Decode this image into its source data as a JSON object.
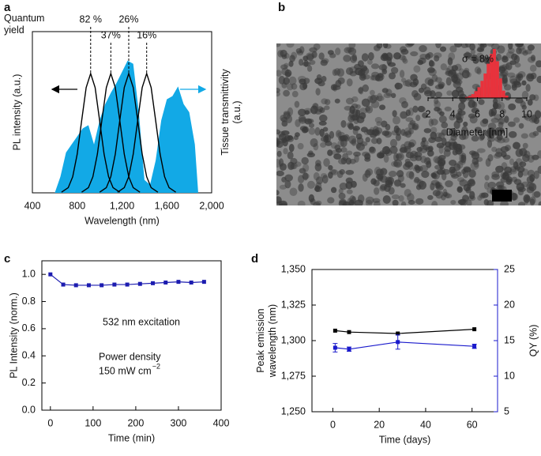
{
  "chart_data": [
    {
      "type": "line",
      "label": "a",
      "annotation": "Quantum yield",
      "xlabel": "Wavelength (nm)",
      "ylabel": "PL intensity (a.u.)",
      "y2label": "Tissue transmittivity (a.u.)",
      "xlim": [
        400,
        2000
      ],
      "xticks": [
        400,
        800,
        {
          "value": 1200,
          "label": "1,200"
        },
        {
          "value": 1600,
          "label": "1,600"
        },
        {
          "value": 2000,
          "label": "2,000"
        }
      ],
      "ylim": [
        0,
        1
      ],
      "y2lim": [
        0,
        1
      ],
      "series": [
        {
          "color": "#12a9e6",
          "fill": true,
          "axis": "y2",
          "x": [
            600,
            650,
            700,
            750,
            800,
            850,
            900,
            950,
            1000,
            1050,
            1100,
            1150,
            1200,
            1250,
            1300,
            1350,
            1400,
            1450,
            1500,
            1550,
            1600,
            1650,
            1700,
            1750,
            1800,
            1850,
            1880
          ],
          "values": [
            0,
            0.1,
            0.25,
            0.3,
            0.35,
            0.4,
            0.42,
            0.3,
            0.45,
            0.55,
            0.62,
            0.68,
            0.75,
            0.82,
            0.8,
            0.5,
            0.08,
            0.05,
            0.2,
            0.45,
            0.58,
            0.6,
            0.66,
            0.55,
            0.5,
            0.3,
            0
          ]
        },
        {
          "name": "82 %",
          "color": "#000000",
          "x": [
            660,
            720,
            760,
            800,
            840,
            880,
            920,
            960,
            1000,
            1040,
            1080,
            1120,
            1180
          ],
          "values": [
            0.004,
            0.032,
            0.1,
            0.24,
            0.449,
            0.653,
            0.74,
            0.653,
            0.449,
            0.24,
            0.1,
            0.032,
            0.004
          ]
        },
        {
          "name": "37%",
          "color": "#000000",
          "x": [
            840,
            900,
            940,
            980,
            1020,
            1060,
            1100,
            1140,
            1180,
            1220,
            1260,
            1300,
            1360
          ],
          "values": [
            0.004,
            0.032,
            0.1,
            0.24,
            0.449,
            0.653,
            0.74,
            0.653,
            0.449,
            0.24,
            0.1,
            0.032,
            0.004
          ]
        },
        {
          "name": "26%",
          "color": "#000000",
          "x": [
            1000,
            1060,
            1100,
            1140,
            1180,
            1220,
            1260,
            1300,
            1340,
            1380,
            1420,
            1460,
            1520
          ],
          "values": [
            0.004,
            0.032,
            0.1,
            0.24,
            0.449,
            0.653,
            0.74,
            0.653,
            0.449,
            0.24,
            0.1,
            0.032,
            0.004
          ]
        },
        {
          "name": "16%",
          "color": "#000000",
          "x": [
            1160,
            1220,
            1260,
            1300,
            1340,
            1380,
            1420,
            1460,
            1500,
            1540,
            1580,
            1620,
            1680
          ],
          "values": [
            0.004,
            0.032,
            0.1,
            0.24,
            0.449,
            0.653,
            0.74,
            0.653,
            0.449,
            0.24,
            0.1,
            0.032,
            0.004
          ]
        }
      ]
    },
    {
      "type": "histogram",
      "label": "b",
      "annotation": "σ = 8%",
      "xlabel": "Diameter [nm]",
      "color": "#e8323c",
      "xlim": [
        2,
        10
      ],
      "xticks": [
        2,
        4,
        6,
        8,
        10
      ],
      "ylim": [
        0,
        100
      ],
      "bins": [
        5,
        5.25,
        5.5,
        5.75,
        6,
        6.25,
        6.5,
        6.75,
        7,
        7.25,
        7.5,
        7.75,
        8,
        8.25,
        8.5
      ],
      "values": [
        2,
        4,
        8,
        14,
        22,
        35,
        50,
        70,
        90,
        100,
        75,
        40,
        15,
        5
      ]
    },
    {
      "type": "line",
      "label": "c",
      "xlabel": "Time (min)",
      "ylabel": "PL Intensity (norm.)",
      "annotations": [
        "532 nm excitation",
        "Power density",
        "150 mW cm",
        "−2"
      ],
      "xlim": [
        -20,
        400
      ],
      "xticks": [
        0,
        100,
        200,
        300,
        400
      ],
      "ylim": [
        0,
        1.1
      ],
      "yticks": [
        {
          "value": 0,
          "label": "0.0"
        },
        0.2,
        0.4,
        0.6,
        0.8,
        {
          "value": 1,
          "label": "1.0"
        }
      ],
      "series": [
        {
          "color": "#1c1cb0",
          "x": [
            0,
            30,
            60,
            90,
            120,
            150,
            180,
            210,
            240,
            270,
            300,
            330,
            360
          ],
          "values": [
            1.0,
            0.925,
            0.92,
            0.92,
            0.92,
            0.925,
            0.925,
            0.93,
            0.935,
            0.94,
            0.945,
            0.94,
            0.945
          ]
        }
      ]
    },
    {
      "type": "line",
      "label": "d",
      "xlabel": "Time (days)",
      "ylabel": "Peak emission wavelength (nm)",
      "y2label": "QY (%)",
      "xlim": [
        -9,
        71
      ],
      "xticks": [
        0,
        20,
        40,
        60
      ],
      "ylim": [
        1250,
        1350
      ],
      "yticks": [
        {
          "value": 1250,
          "label": "1,250"
        },
        {
          "value": 1275,
          "label": "1,275"
        },
        {
          "value": 1300,
          "label": "1,300"
        },
        {
          "value": 1325,
          "label": "1,325"
        },
        {
          "value": 1350,
          "label": "1,350"
        }
      ],
      "y2lim": [
        5,
        25
      ],
      "y2ticks": [
        5,
        10,
        15,
        20,
        25
      ],
      "y2color": "#1a1acc",
      "series": [
        {
          "color": "#000000",
          "x": [
            1,
            7,
            28,
            61
          ],
          "values": [
            1307,
            1306,
            1305,
            1308
          ]
        },
        {
          "color": "#1a1acc",
          "axis": "y2",
          "x": [
            1,
            7,
            28,
            61
          ],
          "values": [
            14,
            13.8,
            14.8,
            14.2
          ],
          "errors": [
            0.6,
            0.3,
            1.0,
            0.3
          ]
        }
      ]
    }
  ]
}
